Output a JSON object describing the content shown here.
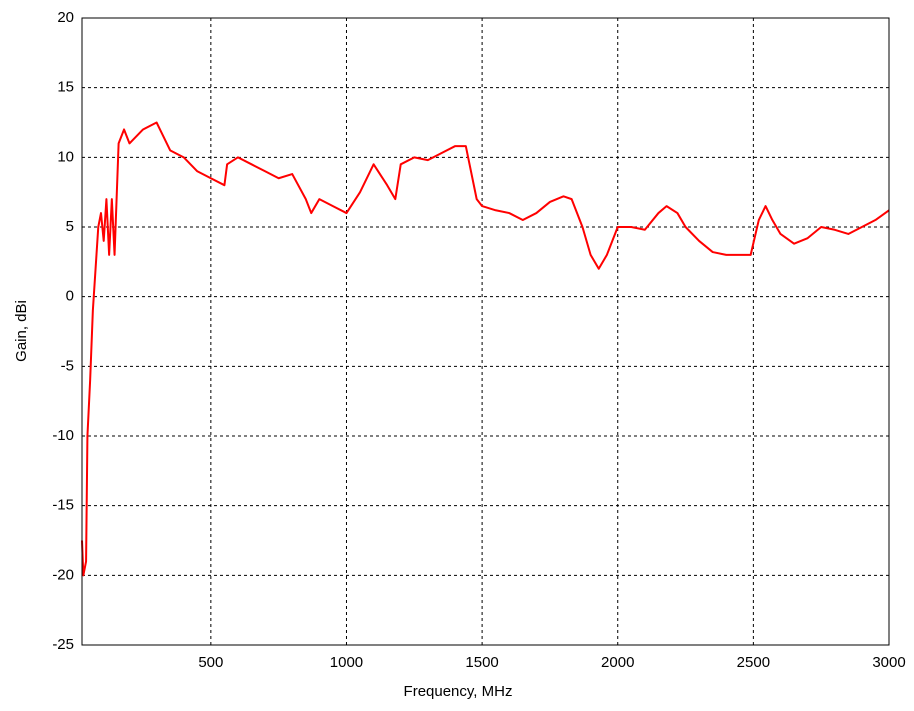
{
  "chart_data": {
    "type": "line",
    "xlabel": "Frequency, MHz",
    "ylabel": "Gain, dBi",
    "x": [
      25,
      30,
      40,
      45,
      55,
      65,
      75,
      85,
      95,
      105,
      115,
      125,
      135,
      145,
      160,
      180,
      200,
      250,
      300,
      350,
      400,
      450,
      500,
      550,
      560,
      600,
      650,
      700,
      750,
      800,
      850,
      870,
      900,
      950,
      1000,
      1050,
      1100,
      1150,
      1180,
      1200,
      1250,
      1300,
      1350,
      1400,
      1440,
      1480,
      1500,
      1550,
      1600,
      1650,
      1700,
      1750,
      1800,
      1830,
      1870,
      1900,
      1930,
      1960,
      2000,
      2050,
      2100,
      2150,
      2180,
      2220,
      2250,
      2300,
      2350,
      2400,
      2450,
      2490,
      2520,
      2545,
      2570,
      2600,
      2650,
      2700,
      2750,
      2800,
      2850,
      2900,
      2950,
      3000
    ],
    "series": [
      {
        "name": "Gain",
        "color": "#ff0000",
        "values": [
          -17.5,
          -20,
          -19,
          -10,
          -6,
          -1,
          2,
          5,
          6,
          4,
          7,
          3,
          7,
          3,
          11,
          12,
          11,
          12,
          12.5,
          10.5,
          10,
          9,
          8.5,
          8,
          9.5,
          10,
          9.5,
          9,
          8.5,
          8.8,
          7,
          6,
          7,
          6.5,
          6,
          7.5,
          9.5,
          8,
          7,
          9.5,
          10,
          9.8,
          10.3,
          10.8,
          10.8,
          7,
          6.5,
          6.2,
          6,
          5.5,
          6,
          6.8,
          7.2,
          7,
          5,
          3,
          2,
          3,
          5,
          5,
          4.8,
          6,
          6.5,
          6,
          5,
          4,
          3.2,
          3,
          3,
          3,
          5.5,
          6.5,
          5.5,
          4.5,
          3.8,
          4.2,
          5,
          4.8,
          4.5,
          5,
          5.5,
          6.2
        ]
      }
    ],
    "xlim": [
      25,
      3000
    ],
    "xticks": [
      500,
      1000,
      1500,
      2000,
      2500,
      3000
    ],
    "ylim": [
      -25,
      20
    ],
    "yticks": [
      -25,
      -20,
      -15,
      -10,
      -5,
      0,
      5,
      10,
      15,
      20
    ],
    "grid": true
  }
}
